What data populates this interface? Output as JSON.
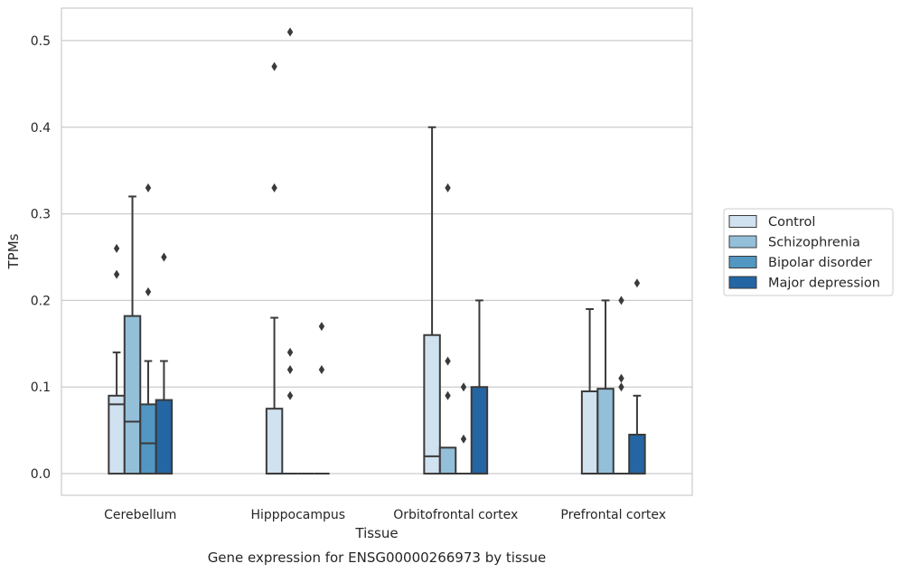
{
  "chart_data": {
    "type": "box",
    "title": "Gene expression for ENSG00000266973 by tissue",
    "xlabel": "Tissue",
    "ylabel": "TPMs",
    "ylim": [
      -0.025,
      0.5375
    ],
    "yticks": [
      "0.0",
      "0.1",
      "0.2",
      "0.3",
      "0.4",
      "0.5"
    ],
    "grid": true,
    "legend_position": "outside-right",
    "categories": [
      "Cerebellum",
      "Hipppocampus",
      "Orbitofrontal cortex",
      "Prefrontal cortex"
    ],
    "series": [
      {
        "name": "Control",
        "color": "#d0e1f0",
        "boxes": [
          {
            "q1": 0.0,
            "median": 0.08,
            "q3": 0.09,
            "whisker_low": 0.0,
            "whisker_high": 0.14,
            "outliers": [
              0.23,
              0.26
            ]
          },
          {
            "q1": 0.0,
            "median": 0.0,
            "q3": 0.075,
            "whisker_low": 0.0,
            "whisker_high": 0.18,
            "outliers": [
              0.33,
              0.47
            ]
          },
          {
            "q1": 0.0,
            "median": 0.02,
            "q3": 0.16,
            "whisker_low": 0.0,
            "whisker_high": 0.4,
            "outliers": []
          },
          {
            "q1": 0.0,
            "median": 0.0,
            "q3": 0.095,
            "whisker_low": 0.0,
            "whisker_high": 0.19,
            "outliers": []
          }
        ]
      },
      {
        "name": "Schizophrenia",
        "color": "#94bfd9",
        "boxes": [
          {
            "q1": 0.0,
            "median": 0.06,
            "q3": 0.182,
            "whisker_low": 0.0,
            "whisker_high": 0.32,
            "outliers": []
          },
          {
            "q1": 0.0,
            "median": 0.0,
            "q3": 0.0,
            "whisker_low": 0.0,
            "whisker_high": 0.0,
            "outliers": [
              0.09,
              0.12,
              0.14,
              0.51
            ]
          },
          {
            "q1": 0.0,
            "median": 0.0,
            "q3": 0.03,
            "whisker_low": 0.0,
            "whisker_high": 0.03,
            "outliers": [
              0.09,
              0.13,
              0.33
            ]
          },
          {
            "q1": 0.0,
            "median": 0.0,
            "q3": 0.098,
            "whisker_low": 0.0,
            "whisker_high": 0.2,
            "outliers": []
          }
        ]
      },
      {
        "name": "Bipolar disorder",
        "color": "#5296c2",
        "boxes": [
          {
            "q1": 0.0,
            "median": 0.035,
            "q3": 0.08,
            "whisker_low": 0.0,
            "whisker_high": 0.13,
            "outliers": [
              0.21,
              0.33
            ]
          },
          {
            "q1": 0.0,
            "median": 0.0,
            "q3": 0.0,
            "whisker_low": 0.0,
            "whisker_high": 0.0,
            "outliers": []
          },
          {
            "q1": 0.0,
            "median": 0.0,
            "q3": 0.0,
            "whisker_low": 0.0,
            "whisker_high": 0.0,
            "outliers": [
              0.04,
              0.1
            ]
          },
          {
            "q1": 0.0,
            "median": 0.0,
            "q3": 0.0,
            "whisker_low": 0.0,
            "whisker_high": 0.0,
            "outliers": [
              0.1,
              0.11,
              0.2
            ]
          }
        ]
      },
      {
        "name": "Major depression",
        "color": "#2465a4",
        "boxes": [
          {
            "q1": 0.0,
            "median": 0.0,
            "q3": 0.085,
            "whisker_low": 0.0,
            "whisker_high": 0.13,
            "outliers": [
              0.25
            ]
          },
          {
            "q1": 0.0,
            "median": 0.0,
            "q3": 0.0,
            "whisker_low": 0.0,
            "whisker_high": 0.0,
            "outliers": [
              0.12,
              0.17
            ]
          },
          {
            "q1": 0.0,
            "median": 0.0,
            "q3": 0.1,
            "whisker_low": 0.0,
            "whisker_high": 0.2,
            "outliers": []
          },
          {
            "q1": 0.0,
            "median": 0.0,
            "q3": 0.045,
            "whisker_low": 0.0,
            "whisker_high": 0.09,
            "outliers": [
              0.22
            ]
          }
        ]
      }
    ]
  }
}
